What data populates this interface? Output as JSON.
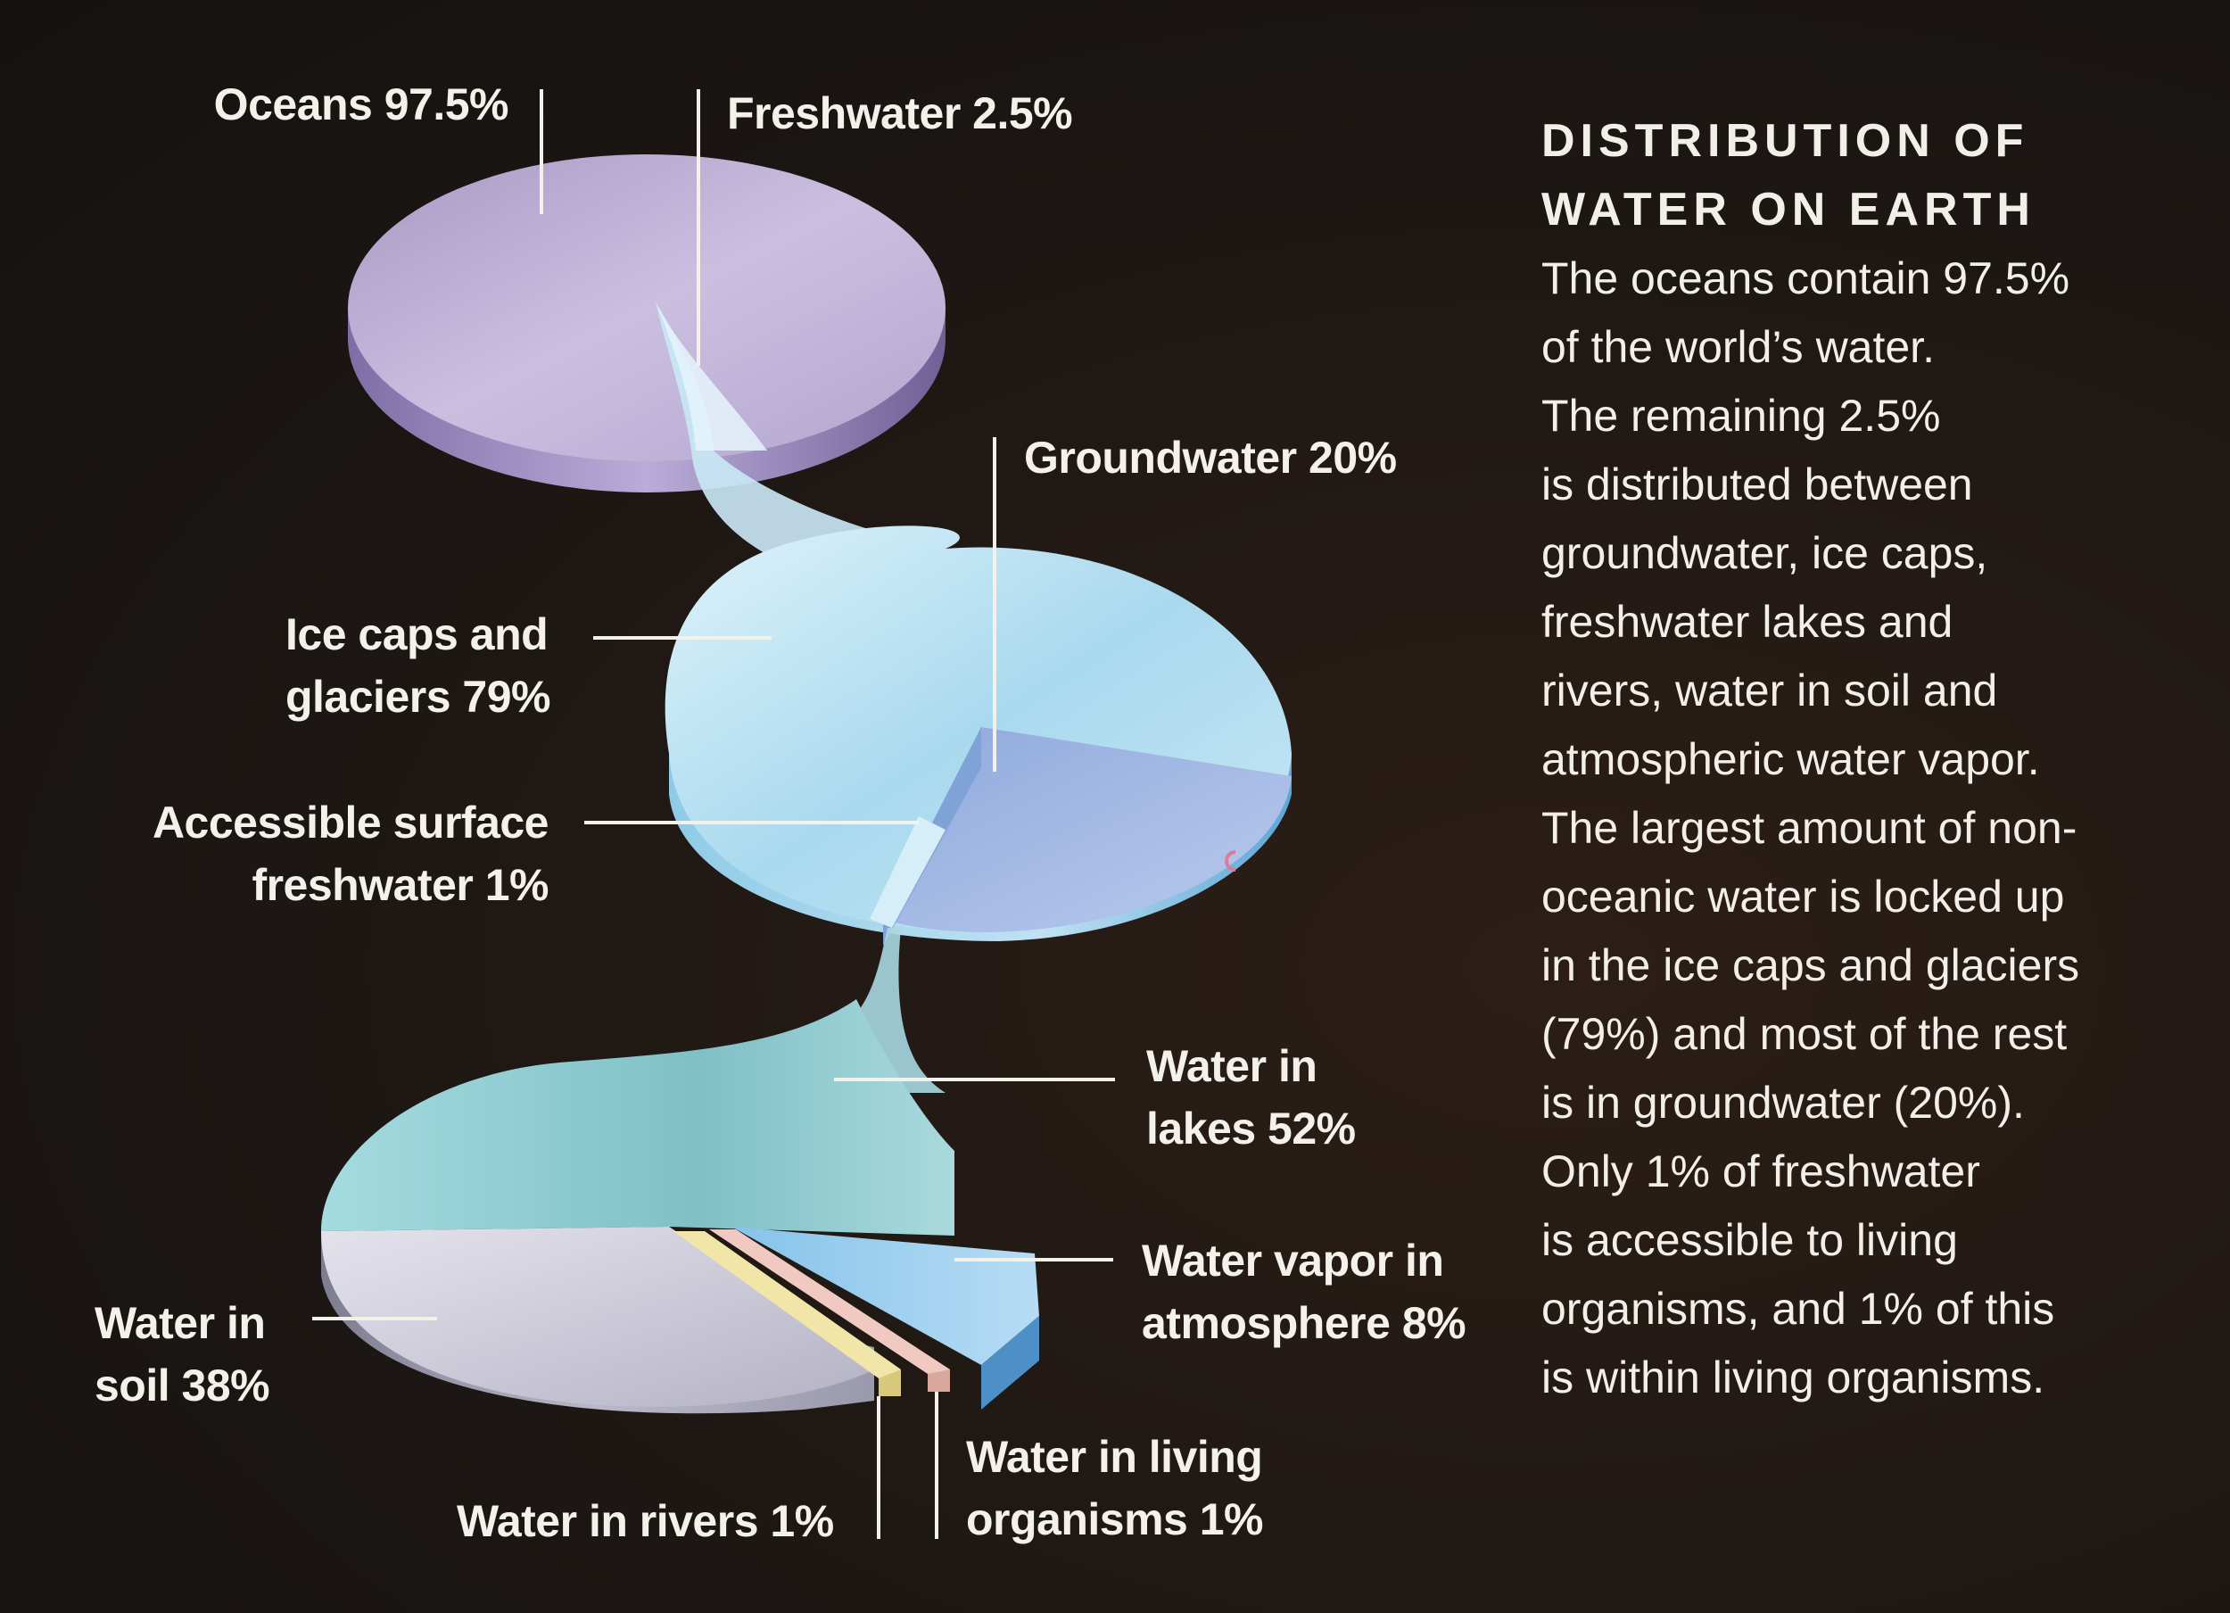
{
  "labels": {
    "oceans": [
      "Oceans 97.5%"
    ],
    "freshwater": [
      "Freshwater 2.5%"
    ],
    "groundwater": [
      "Groundwater 20%"
    ],
    "ice_caps": [
      "Ice caps and",
      "glaciers 79%"
    ],
    "accessible_surface": [
      "Accessible surface",
      "freshwater 1%"
    ],
    "lakes": [
      "Water in",
      "lakes 52%"
    ],
    "vapor": [
      "Water vapor in",
      "atmosphere 8%"
    ],
    "soil": [
      "Water in",
      "soil 38%"
    ],
    "rivers": [
      "Water in rivers 1%"
    ],
    "living": [
      "Water in living",
      "organisms 1%"
    ]
  },
  "panel": {
    "title_lines": [
      "DISTRIBUTION OF",
      "WATER ON EARTH"
    ],
    "body_lines": [
      "The oceans contain 97.5%",
      "of the world’s water.",
      "The remaining 2.5%",
      "is distributed between",
      "groundwater, ice caps,",
      "freshwater lakes and",
      "rivers, water in soil and",
      "atmospheric water vapor.",
      "The largest amount of non-",
      "oceanic water is locked up",
      "in the ice caps and glaciers",
      "(79%) and most of the rest",
      "is in groundwater (20%).",
      "Only 1% of freshwater",
      "is accessible to living",
      "organisms, and 1% of this",
      "is within living organisms."
    ]
  },
  "colors": {
    "ocean": "#b9a9d3",
    "ice": "#bfe0f0",
    "groundwater": "#a7bfe6",
    "lakes": "#9cd3d6",
    "soil": "#c9c8d6",
    "vapor": "#9fcfee",
    "rivers": "#f1e6a8",
    "living": "#f0c9c0"
  }
}
